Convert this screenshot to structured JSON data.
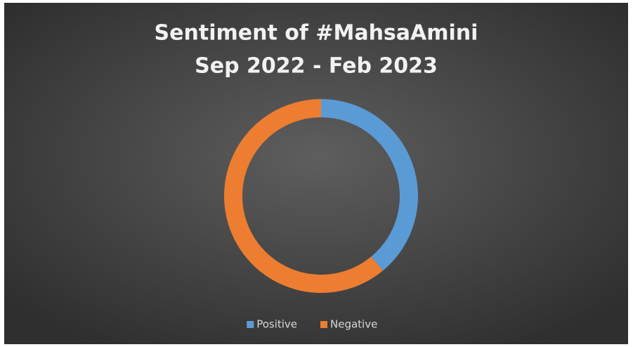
{
  "chart_data": {
    "type": "donut",
    "title": "Sentiment of #MahsaAmini",
    "subtitle": "Sep 2022 - Feb 2023",
    "categories": [
      "Positive",
      "Negative"
    ],
    "values": [
      39,
      61
    ],
    "colors": [
      "#5b9bd5",
      "#ed7d31"
    ],
    "legend": "bottom"
  }
}
